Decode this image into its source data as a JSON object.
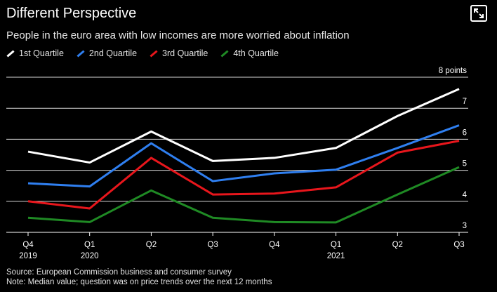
{
  "header": {
    "title": "Different Perspective",
    "subtitle": "People in the euro area with low incomes are more worried about inflation"
  },
  "icons": {
    "expand": "expand-icon"
  },
  "footer": {
    "source": "Source: European Commission business and consumer survey",
    "note": "Note: Median value; question was on price trends over the next 12 months"
  },
  "chart_data": {
    "type": "line",
    "x_ticks": [
      {
        "q": "Q4",
        "y": "2019"
      },
      {
        "q": "Q1",
        "y": "2020"
      },
      {
        "q": "Q2",
        "y": ""
      },
      {
        "q": "Q3",
        "y": ""
      },
      {
        "q": "Q4",
        "y": ""
      },
      {
        "q": "Q1",
        "y": "2021"
      },
      {
        "q": "Q2",
        "y": ""
      },
      {
        "q": "Q3",
        "y": ""
      }
    ],
    "y_ticks": [
      "3",
      "4",
      "5",
      "6",
      "7",
      "8 points"
    ],
    "ylim": [
      3,
      8
    ],
    "grid": true,
    "legend_position": "top-left",
    "series": [
      {
        "name": "1st Quartile",
        "color": "#ffffff",
        "values": [
          5.6,
          5.25,
          6.25,
          5.3,
          5.4,
          5.72,
          6.75,
          7.62
        ]
      },
      {
        "name": "2nd Quartile",
        "color": "#2f7ff0",
        "values": [
          4.58,
          4.48,
          5.87,
          4.65,
          4.9,
          5.02,
          5.72,
          6.45
        ]
      },
      {
        "name": "3rd Quartile",
        "color": "#e8161c",
        "values": [
          4.0,
          3.77,
          5.4,
          4.22,
          4.25,
          4.45,
          5.57,
          5.95
        ]
      },
      {
        "name": "4th Quartile",
        "color": "#1f8a24",
        "values": [
          3.47,
          3.33,
          4.35,
          3.47,
          3.33,
          3.32,
          4.22,
          5.1
        ]
      }
    ]
  }
}
